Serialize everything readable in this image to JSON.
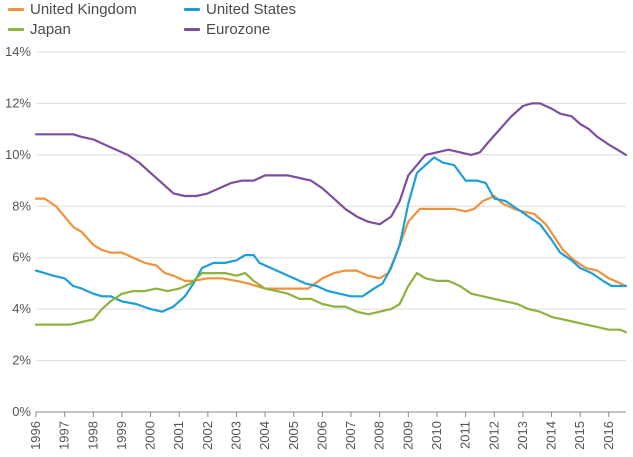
{
  "chart_data": {
    "type": "line",
    "title": "",
    "xlabel": "",
    "ylabel": "",
    "xlim": [
      1996,
      2016.6
    ],
    "ylim": [
      0,
      14
    ],
    "y_ticks": [
      "0%",
      "2%",
      "4%",
      "6%",
      "8%",
      "10%",
      "12%",
      "14%"
    ],
    "x_ticks": [
      "1996",
      "1997",
      "1998",
      "1999",
      "2000",
      "2001",
      "2002",
      "2003",
      "2004",
      "2005",
      "2006",
      "2007",
      "2008",
      "2009",
      "2010",
      "2011",
      "2012",
      "2013",
      "2014",
      "2015",
      "2016"
    ],
    "grid": "horizontal",
    "legend_position": "top-left",
    "series": [
      {
        "name": "United Kingdom",
        "color": "#F0923A",
        "points": [
          [
            1996,
            8.3
          ],
          [
            1996.3,
            8.3
          ],
          [
            1996.7,
            8.0
          ],
          [
            1997,
            7.6
          ],
          [
            1997.3,
            7.2
          ],
          [
            1997.6,
            7.0
          ],
          [
            1998,
            6.5
          ],
          [
            1998.3,
            6.3
          ],
          [
            1998.6,
            6.2
          ],
          [
            1999,
            6.2
          ],
          [
            1999.4,
            6.0
          ],
          [
            1999.8,
            5.8
          ],
          [
            2000.2,
            5.7
          ],
          [
            2000.5,
            5.4
          ],
          [
            2000.8,
            5.3
          ],
          [
            2001.2,
            5.1
          ],
          [
            2001.5,
            5.1
          ],
          [
            2002,
            5.2
          ],
          [
            2002.5,
            5.2
          ],
          [
            2003,
            5.1
          ],
          [
            2003.4,
            5.0
          ],
          [
            2004,
            4.8
          ],
          [
            2004.5,
            4.8
          ],
          [
            2005,
            4.8
          ],
          [
            2005.5,
            4.8
          ],
          [
            2006,
            5.2
          ],
          [
            2006.4,
            5.4
          ],
          [
            2006.8,
            5.5
          ],
          [
            2007.2,
            5.5
          ],
          [
            2007.6,
            5.3
          ],
          [
            2008,
            5.2
          ],
          [
            2008.3,
            5.4
          ],
          [
            2008.6,
            6.2
          ],
          [
            2009,
            7.4
          ],
          [
            2009.4,
            7.9
          ],
          [
            2009.8,
            7.9
          ],
          [
            2010.2,
            7.9
          ],
          [
            2010.6,
            7.9
          ],
          [
            2011,
            7.8
          ],
          [
            2011.3,
            7.9
          ],
          [
            2011.6,
            8.2
          ],
          [
            2012,
            8.4
          ],
          [
            2012.3,
            8.1
          ],
          [
            2012.7,
            7.9
          ],
          [
            2013,
            7.8
          ],
          [
            2013.4,
            7.7
          ],
          [
            2013.8,
            7.3
          ],
          [
            2014.1,
            6.8
          ],
          [
            2014.4,
            6.3
          ],
          [
            2014.8,
            5.9
          ],
          [
            2015.2,
            5.6
          ],
          [
            2015.6,
            5.5
          ],
          [
            2016,
            5.2
          ],
          [
            2016.4,
            5.0
          ],
          [
            2016.6,
            4.9
          ]
        ]
      },
      {
        "name": "United States",
        "color": "#1E9ED8",
        "points": [
          [
            1996,
            5.5
          ],
          [
            1996.3,
            5.4
          ],
          [
            1996.6,
            5.3
          ],
          [
            1997,
            5.2
          ],
          [
            1997.3,
            4.9
          ],
          [
            1997.6,
            4.8
          ],
          [
            1998,
            4.6
          ],
          [
            1998.3,
            4.5
          ],
          [
            1998.6,
            4.5
          ],
          [
            1999,
            4.3
          ],
          [
            1999.5,
            4.2
          ],
          [
            2000,
            4.0
          ],
          [
            2000.4,
            3.9
          ],
          [
            2000.8,
            4.1
          ],
          [
            2001.2,
            4.5
          ],
          [
            2001.5,
            5.0
          ],
          [
            2001.8,
            5.6
          ],
          [
            2002.2,
            5.8
          ],
          [
            2002.6,
            5.8
          ],
          [
            2003,
            5.9
          ],
          [
            2003.3,
            6.1
          ],
          [
            2003.6,
            6.1
          ],
          [
            2003.8,
            5.8
          ],
          [
            2004.2,
            5.6
          ],
          [
            2004.6,
            5.4
          ],
          [
            2005,
            5.2
          ],
          [
            2005.4,
            5.0
          ],
          [
            2005.8,
            4.9
          ],
          [
            2006.2,
            4.7
          ],
          [
            2006.6,
            4.6
          ],
          [
            2007,
            4.5
          ],
          [
            2007.4,
            4.5
          ],
          [
            2007.8,
            4.8
          ],
          [
            2008.1,
            5.0
          ],
          [
            2008.4,
            5.6
          ],
          [
            2008.7,
            6.5
          ],
          [
            2009,
            8.1
          ],
          [
            2009.3,
            9.3
          ],
          [
            2009.6,
            9.6
          ],
          [
            2009.9,
            9.9
          ],
          [
            2010.2,
            9.7
          ],
          [
            2010.6,
            9.6
          ],
          [
            2011,
            9.0
          ],
          [
            2011.4,
            9.0
          ],
          [
            2011.7,
            8.9
          ],
          [
            2012,
            8.3
          ],
          [
            2012.4,
            8.2
          ],
          [
            2012.8,
            7.9
          ],
          [
            2013.2,
            7.6
          ],
          [
            2013.6,
            7.3
          ],
          [
            2014,
            6.7
          ],
          [
            2014.3,
            6.2
          ],
          [
            2014.7,
            5.9
          ],
          [
            2015,
            5.6
          ],
          [
            2015.4,
            5.4
          ],
          [
            2015.8,
            5.1
          ],
          [
            2016.1,
            4.9
          ],
          [
            2016.4,
            4.9
          ],
          [
            2016.6,
            4.9
          ]
        ]
      },
      {
        "name": "Japan",
        "color": "#8DB33D",
        "points": [
          [
            1996,
            3.4
          ],
          [
            1996.4,
            3.4
          ],
          [
            1996.8,
            3.4
          ],
          [
            1997.2,
            3.4
          ],
          [
            1997.6,
            3.5
          ],
          [
            1998,
            3.6
          ],
          [
            1998.3,
            4.0
          ],
          [
            1998.6,
            4.3
          ],
          [
            1999,
            4.6
          ],
          [
            1999.4,
            4.7
          ],
          [
            1999.8,
            4.7
          ],
          [
            2000.2,
            4.8
          ],
          [
            2000.6,
            4.7
          ],
          [
            2001,
            4.8
          ],
          [
            2001.4,
            5.0
          ],
          [
            2001.8,
            5.4
          ],
          [
            2002.2,
            5.4
          ],
          [
            2002.6,
            5.4
          ],
          [
            2003,
            5.3
          ],
          [
            2003.3,
            5.4
          ],
          [
            2003.6,
            5.1
          ],
          [
            2004,
            4.8
          ],
          [
            2004.4,
            4.7
          ],
          [
            2004.8,
            4.6
          ],
          [
            2005.2,
            4.4
          ],
          [
            2005.6,
            4.4
          ],
          [
            2006,
            4.2
          ],
          [
            2006.4,
            4.1
          ],
          [
            2006.8,
            4.1
          ],
          [
            2007.2,
            3.9
          ],
          [
            2007.6,
            3.8
          ],
          [
            2008,
            3.9
          ],
          [
            2008.4,
            4.0
          ],
          [
            2008.7,
            4.2
          ],
          [
            2009,
            4.9
          ],
          [
            2009.3,
            5.4
          ],
          [
            2009.6,
            5.2
          ],
          [
            2010,
            5.1
          ],
          [
            2010.4,
            5.1
          ],
          [
            2010.8,
            4.9
          ],
          [
            2011.2,
            4.6
          ],
          [
            2011.6,
            4.5
          ],
          [
            2012,
            4.4
          ],
          [
            2012.4,
            4.3
          ],
          [
            2012.8,
            4.2
          ],
          [
            2013.2,
            4.0
          ],
          [
            2013.6,
            3.9
          ],
          [
            2014,
            3.7
          ],
          [
            2014.4,
            3.6
          ],
          [
            2014.8,
            3.5
          ],
          [
            2015.2,
            3.4
          ],
          [
            2015.6,
            3.3
          ],
          [
            2016,
            3.2
          ],
          [
            2016.4,
            3.2
          ],
          [
            2016.6,
            3.1
          ]
        ]
      },
      {
        "name": "Eurozone",
        "color": "#7B4F9E",
        "points": [
          [
            1996,
            10.8
          ],
          [
            1996.5,
            10.8
          ],
          [
            1997,
            10.8
          ],
          [
            1997.3,
            10.8
          ],
          [
            1997.6,
            10.7
          ],
          [
            1998,
            10.6
          ],
          [
            1998.4,
            10.4
          ],
          [
            1998.8,
            10.2
          ],
          [
            1999.2,
            10.0
          ],
          [
            1999.6,
            9.7
          ],
          [
            2000,
            9.3
          ],
          [
            2000.4,
            8.9
          ],
          [
            2000.8,
            8.5
          ],
          [
            2001.2,
            8.4
          ],
          [
            2001.6,
            8.4
          ],
          [
            2002,
            8.5
          ],
          [
            2002.4,
            8.7
          ],
          [
            2002.8,
            8.9
          ],
          [
            2003.2,
            9.0
          ],
          [
            2003.6,
            9.0
          ],
          [
            2004,
            9.2
          ],
          [
            2004.4,
            9.2
          ],
          [
            2004.8,
            9.2
          ],
          [
            2005.2,
            9.1
          ],
          [
            2005.6,
            9.0
          ],
          [
            2006,
            8.7
          ],
          [
            2006.4,
            8.3
          ],
          [
            2006.8,
            7.9
          ],
          [
            2007.2,
            7.6
          ],
          [
            2007.6,
            7.4
          ],
          [
            2008,
            7.3
          ],
          [
            2008.4,
            7.6
          ],
          [
            2008.7,
            8.2
          ],
          [
            2009,
            9.2
          ],
          [
            2009.3,
            9.6
          ],
          [
            2009.6,
            10.0
          ],
          [
            2010,
            10.1
          ],
          [
            2010.4,
            10.2
          ],
          [
            2010.8,
            10.1
          ],
          [
            2011.2,
            10.0
          ],
          [
            2011.5,
            10.1
          ],
          [
            2011.8,
            10.5
          ],
          [
            2012.2,
            11.0
          ],
          [
            2012.6,
            11.5
          ],
          [
            2013,
            11.9
          ],
          [
            2013.3,
            12.0
          ],
          [
            2013.6,
            12.0
          ],
          [
            2014,
            11.8
          ],
          [
            2014.3,
            11.6
          ],
          [
            2014.7,
            11.5
          ],
          [
            2015,
            11.2
          ],
          [
            2015.3,
            11.0
          ],
          [
            2015.6,
            10.7
          ],
          [
            2016,
            10.4
          ],
          [
            2016.3,
            10.2
          ],
          [
            2016.6,
            10.0
          ]
        ]
      }
    ]
  }
}
